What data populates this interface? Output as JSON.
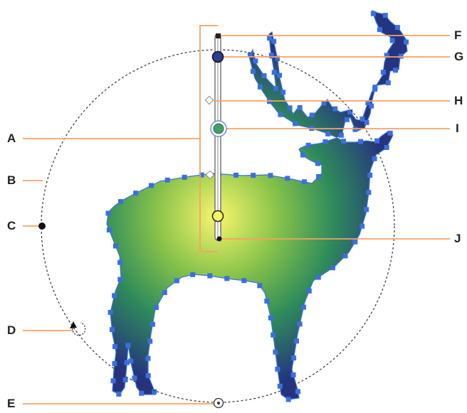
{
  "callouts": {
    "A": "A",
    "B": "B",
    "C": "C",
    "D": "D",
    "E": "E",
    "F": "F",
    "G": "G",
    "H": "H",
    "I": "I",
    "J": "J"
  },
  "colors": {
    "callout_line": "#f4a261",
    "anchor_point": "#3b6fe0",
    "gradient_center": "#f7f56a",
    "gradient_mid": "#6cb84a",
    "gradient_outer": "#2a3d8f",
    "dashed_circle": "#333333"
  }
}
